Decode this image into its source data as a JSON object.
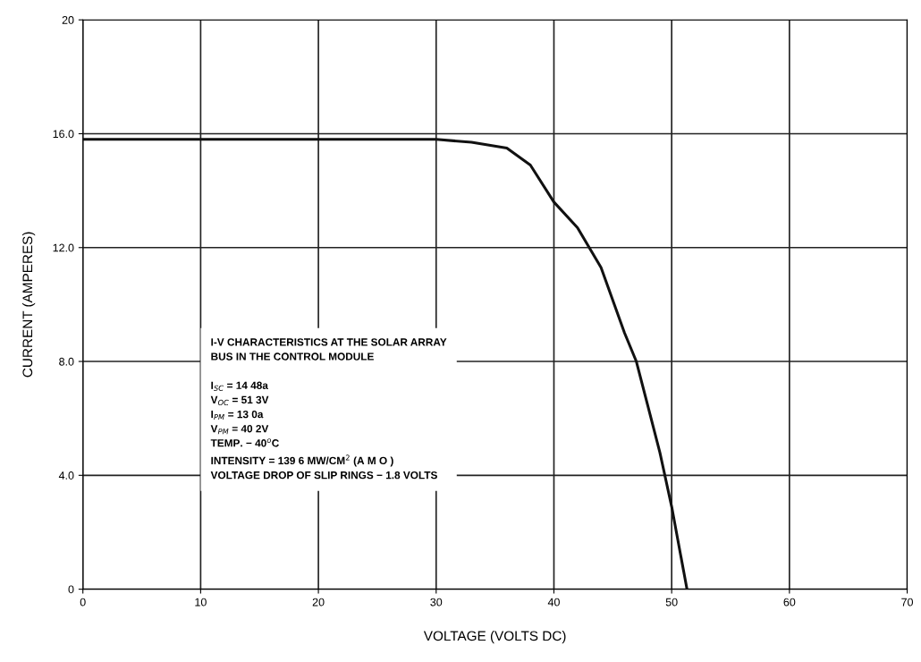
{
  "chart_data": {
    "type": "line",
    "xlabel": "VOLTAGE (VOLTS DC)",
    "ylabel": "CURRENT (AMPERES)",
    "x": [
      0,
      10,
      20,
      30,
      33,
      36,
      38,
      40,
      42,
      44,
      46,
      47,
      48,
      49,
      50,
      51.3
    ],
    "series": [
      {
        "color": "#111111",
        "values": [
          15.8,
          15.8,
          15.8,
          15.8,
          15.7,
          15.5,
          14.9,
          13.6,
          12.7,
          11.3,
          9.0,
          8.0,
          6.4,
          4.8,
          2.9,
          0
        ]
      }
    ],
    "xlim": [
      0,
      70
    ],
    "ylim": [
      0,
      20
    ],
    "xticks": [
      0,
      10,
      20,
      30,
      40,
      50,
      60,
      70
    ],
    "yticks": [
      0,
      {
        "value": 4,
        "label": "4.0"
      },
      {
        "value": 8,
        "label": "8.0"
      },
      {
        "value": 12,
        "label": "12.0"
      },
      {
        "value": 16,
        "label": "16.0"
      },
      20
    ],
    "grid": true,
    "marker": "none",
    "line_style": "solid",
    "annotations": [
      "I-V CHARACTERISTICS AT THE SOLAR ARRAY\nBUS IN THE CONTROL MODULE\n\nI$_{SC}$ = 14 48a\nV$_{OC}$ = 51 3V\nI$_{PM}$ = 13 0a\nV$_{PM}$ = 40 2V\nTEMP. − 40$^{o}$C\nINTENSITY = 139 6 MW/CM$^{2}$ (A M O )\nVOLTAGE DROP OF SLIP RINGS − 1.8 VOLTS"
    ]
  }
}
